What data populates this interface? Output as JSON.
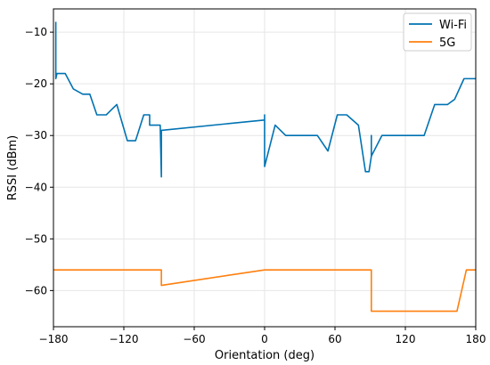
{
  "chart_data": {
    "type": "line",
    "title": "",
    "xlabel": "Orientation (deg)",
    "ylabel": "RSSI (dBm)",
    "xlim": [
      -180,
      180
    ],
    "ylim": [
      -67,
      -5.5
    ],
    "xticks": [
      -180,
      -120,
      -60,
      0,
      60,
      120,
      180
    ],
    "yticks": [
      -10,
      -20,
      -30,
      -40,
      -50,
      -60
    ],
    "grid": true,
    "legend_position": "top-right",
    "series": [
      {
        "name": "Wi-Fi",
        "color": "#0072B2",
        "points": [
          [
            -178,
            -8
          ],
          [
            -178,
            -19
          ],
          [
            -177,
            -18
          ],
          [
            -170,
            -18
          ],
          [
            -163,
            -21
          ],
          [
            -155,
            -22
          ],
          [
            -149,
            -22
          ],
          [
            -143,
            -26
          ],
          [
            -135,
            -26
          ],
          [
            -126,
            -24
          ],
          [
            -117,
            -31
          ],
          [
            -110,
            -31
          ],
          [
            -103,
            -26
          ],
          [
            -98,
            -26
          ],
          [
            -98,
            -28
          ],
          [
            -89,
            -28
          ],
          [
            -88,
            -38
          ],
          [
            -88,
            -29
          ],
          [
            0,
            -27
          ],
          [
            0,
            -26
          ],
          [
            0,
            -36
          ],
          [
            9,
            -28
          ],
          [
            18,
            -30
          ],
          [
            45,
            -30
          ],
          [
            54,
            -33
          ],
          [
            62,
            -26
          ],
          [
            70,
            -26
          ],
          [
            80,
            -28
          ],
          [
            86,
            -37
          ],
          [
            89,
            -37
          ],
          [
            91,
            -34
          ],
          [
            91,
            -30
          ],
          [
            91,
            -34
          ],
          [
            100,
            -30
          ],
          [
            136,
            -30
          ],
          [
            145,
            -24
          ],
          [
            156,
            -24
          ],
          [
            162,
            -23
          ],
          [
            170,
            -19
          ],
          [
            180,
            -19
          ]
        ]
      },
      {
        "name": "5G",
        "color": "#FF7F0E",
        "points": [
          [
            -180,
            -56
          ],
          [
            -88,
            -56
          ],
          [
            -88,
            -59
          ],
          [
            0,
            -56
          ],
          [
            91,
            -56
          ],
          [
            91,
            -64
          ],
          [
            164,
            -64
          ],
          [
            172,
            -56
          ],
          [
            180,
            -56
          ]
        ]
      }
    ]
  }
}
